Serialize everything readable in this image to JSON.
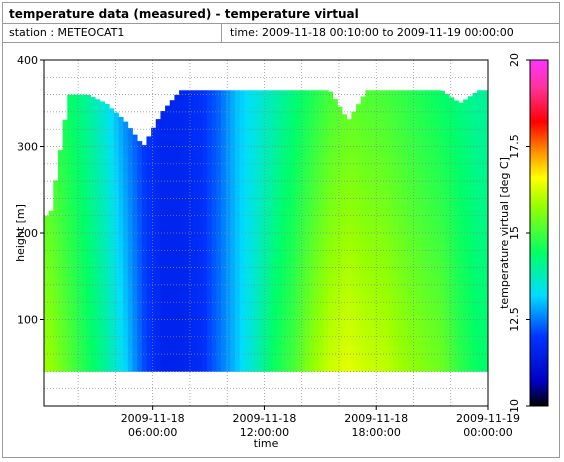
{
  "title": "temperature data (measured) - temperature virtual",
  "station_label": "station : METEOCAT1",
  "time_label": "time: 2009-11-18 00:10:00 to 2009-11-19 00:00:00",
  "chart_data": {
    "type": "heatmap",
    "title": "temperature data (measured) - temperature virtual",
    "xlabel": "time",
    "ylabel": "height [m]",
    "colorbar_label": "temperature virtual [deg C]",
    "xlim": [
      0.1667,
      24
    ],
    "ylim": [
      0,
      400
    ],
    "x_unit": "hours since 2009-11-18 00:00:00",
    "x_ticks": [
      {
        "value": 6,
        "line1": "2009-11-18",
        "line2": "06:00:00"
      },
      {
        "value": 12,
        "line1": "2009-11-18",
        "line2": "12:00:00"
      },
      {
        "value": 18,
        "line1": "2009-11-18",
        "line2": "18:00:00"
      },
      {
        "value": 24,
        "line1": "2009-11-19",
        "line2": "00:00:00"
      }
    ],
    "y_ticks": [
      100,
      200,
      300,
      400
    ],
    "colorbar_range": [
      10,
      20
    ],
    "colorbar_ticks": [
      "10",
      "12.5",
      "15",
      "17.5",
      "20"
    ],
    "height_range_m": [
      40,
      365
    ],
    "grid": true,
    "colormap": [
      "#000000",
      "#0000c0",
      "#0033ff",
      "#00ddff",
      "#00ff66",
      "#99ff00",
      "#ffff00",
      "#ff8800",
      "#ff0000",
      "#ff3399",
      "#ff33ff"
    ],
    "colormap_positions": [
      0,
      0.07,
      0.2,
      0.32,
      0.44,
      0.58,
      0.66,
      0.74,
      0.82,
      0.92,
      1
    ],
    "time_hours": [
      0.5,
      1.5,
      2.5,
      3.5,
      4.5,
      5.5,
      6.5,
      7.5,
      8.5,
      9.5,
      10.5,
      11.5,
      12.5,
      13.5,
      14.5,
      15.5,
      16.5,
      17.5,
      18.5,
      19.5,
      20.5,
      21.5,
      22.5,
      23.5
    ],
    "temp_low": [
      15.8,
      15.2,
      14.6,
      14.0,
      13.2,
      12.2,
      11.6,
      11.6,
      11.8,
      12.4,
      13.0,
      13.7,
      14.5,
      15.0,
      15.7,
      16.2,
      16.4,
      16.2,
      16.1,
      15.8,
      15.6,
      15.4,
      14.8,
      14.4
    ],
    "temp_high": [
      14.8,
      14.4,
      14.0,
      13.4,
      12.6,
      12.0,
      11.7,
      11.7,
      11.9,
      12.3,
      13.0,
      13.4,
      13.8,
      14.2,
      14.6,
      15.0,
      15.2,
      15.1,
      15.0,
      14.8,
      14.6,
      14.4,
      14.2,
      14.0
    ],
    "top_height_m": [
      220,
      360,
      360,
      350,
      330,
      300,
      340,
      365,
      365,
      365,
      365,
      365,
      365,
      365,
      365,
      365,
      330,
      365,
      365,
      365,
      365,
      365,
      350,
      365
    ]
  }
}
